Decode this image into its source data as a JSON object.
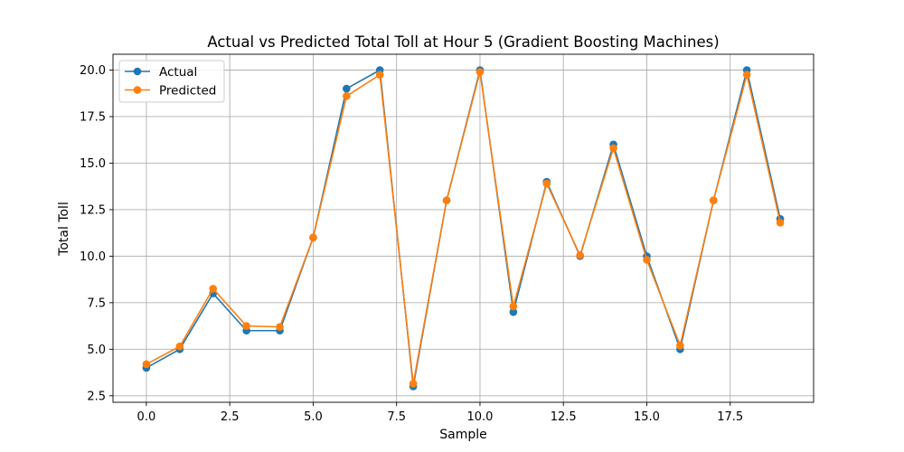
{
  "chart_data": {
    "type": "line",
    "title": "Actual vs Predicted Total Toll at Hour 5 (Gradient Boosting Machines)",
    "xlabel": "Sample",
    "ylabel": "Total Toll",
    "x": [
      0,
      1,
      2,
      3,
      4,
      5,
      6,
      7,
      8,
      9,
      10,
      11,
      12,
      13,
      14,
      15,
      16,
      17,
      18,
      19
    ],
    "xlim": [
      -1,
      20
    ],
    "ylim": [
      2.15,
      20.85
    ],
    "xticks": [
      0.0,
      2.5,
      5.0,
      7.5,
      10.0,
      12.5,
      15.0,
      17.5
    ],
    "xtick_labels": [
      "0.0",
      "2.5",
      "5.0",
      "7.5",
      "10.0",
      "12.5",
      "15.0",
      "17.5"
    ],
    "yticks": [
      2.5,
      5.0,
      7.5,
      10.0,
      12.5,
      15.0,
      17.5,
      20.0
    ],
    "ytick_labels": [
      "2.5",
      "5.0",
      "7.5",
      "10.0",
      "12.5",
      "15.0",
      "17.5",
      "20.0"
    ],
    "grid": true,
    "legend_position": "top-left",
    "series": [
      {
        "name": "Actual",
        "color": "#1f77b4",
        "values": [
          4,
          5,
          8,
          6,
          6,
          11,
          19,
          20,
          3,
          13,
          20,
          7,
          14,
          10,
          16,
          10,
          5,
          13,
          20,
          12
        ]
      },
      {
        "name": "Predicted",
        "color": "#ff7f0e",
        "values": [
          4.2,
          5.15,
          8.25,
          6.25,
          6.2,
          11.0,
          18.6,
          19.75,
          3.15,
          13.0,
          19.9,
          7.3,
          13.9,
          10.05,
          15.8,
          9.8,
          5.2,
          13.0,
          19.75,
          11.8
        ]
      }
    ]
  }
}
